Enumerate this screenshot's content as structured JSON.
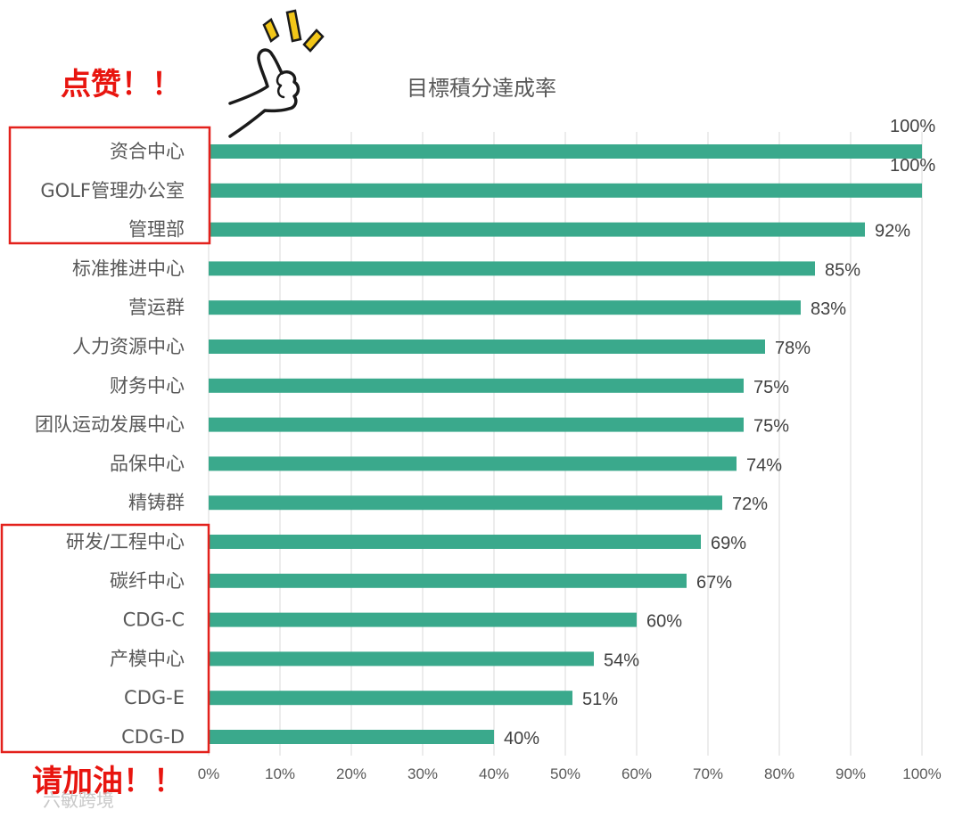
{
  "colors": {
    "bar": "#3aa98c",
    "gridline": "#d9d9d9",
    "highlight_box": "#e3211c",
    "callout_text": "#e8150f",
    "sparkle": "#f2c618"
  },
  "annotations": {
    "praise": "点赞！！",
    "encourage": "请加油！！",
    "thumbs_up_icon": "thumbs-up-icon",
    "watermark": "六敏跨境"
  },
  "chart_data": {
    "type": "bar",
    "orientation": "horizontal",
    "title": "目標積分達成率",
    "xlabel": "",
    "ylabel": "",
    "xlim": [
      0,
      100
    ],
    "x_ticks": [
      0,
      10,
      20,
      30,
      40,
      50,
      60,
      70,
      80,
      90,
      100
    ],
    "x_tick_labels": [
      "0%",
      "10%",
      "20%",
      "30%",
      "40%",
      "50%",
      "60%",
      "70%",
      "80%",
      "90%",
      "100%"
    ],
    "grid": "vertical",
    "legend": "none",
    "categories": [
      "资合中心",
      "GOLF管理办公室",
      "管理部",
      "标准推进中心",
      "营运群",
      "人力资源中心",
      "财务中心",
      "团队运动发展中心",
      "品保中心",
      "精铸群",
      "研发/工程中心",
      "碳纤中心",
      "CDG-C",
      "产模中心",
      "CDG-E",
      "CDG-D"
    ],
    "values": [
      100,
      100,
      92,
      85,
      83,
      78,
      75,
      75,
      74,
      72,
      69,
      67,
      60,
      54,
      51,
      40
    ],
    "value_labels": [
      "100%",
      "100%",
      "92%",
      "85%",
      "83%",
      "78%",
      "75%",
      "75%",
      "74%",
      "72%",
      "69%",
      "67%",
      "60%",
      "54%",
      "51%",
      "40%"
    ],
    "highlight_groups": [
      {
        "name": "top",
        "categories": [
          "资合中心",
          "GOLF管理办公室",
          "管理部"
        ]
      },
      {
        "name": "bottom",
        "categories": [
          "研发/工程中心",
          "碳纤中心",
          "CDG-C",
          "产模中心",
          "CDG-E",
          "CDG-D"
        ]
      }
    ]
  }
}
